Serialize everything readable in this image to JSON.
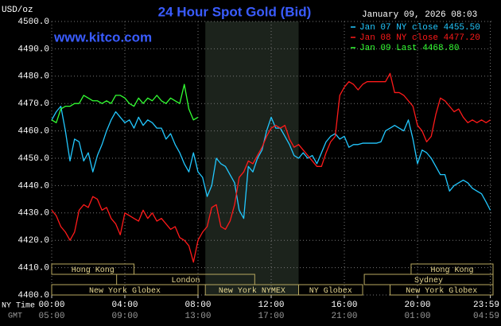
{
  "chart_data": {
    "type": "line",
    "title": "24 Hour Spot Gold (Bid)",
    "watermark": "www.kitco.com",
    "ylabel": "USD/oz",
    "timestamp": "January 09, 2026 08:03",
    "xlabel": "NY Time",
    "x2label": "GMT",
    "xlim": [
      0,
      24.13
    ],
    "xticks": [
      {
        "value": 0,
        "label": "00:00"
      },
      {
        "value": 4,
        "label": "04:00"
      },
      {
        "value": 8,
        "label": "08:00"
      },
      {
        "value": 12,
        "label": "12:00"
      },
      {
        "value": 16,
        "label": "16:00"
      },
      {
        "value": 20,
        "label": "20:00"
      },
      {
        "value": 23.98,
        "label": "23:59"
      }
    ],
    "gmt_labels": [
      "05:00",
      "09:00",
      "13:00",
      "17:00",
      "21:00",
      "01:00",
      "04:59"
    ],
    "ylim": [
      4400,
      4500
    ],
    "yticks": [
      {
        "value": 4400,
        "label": "4400.0"
      },
      {
        "value": 4410,
        "label": "4410.0"
      },
      {
        "value": 4420,
        "label": "4420.0"
      },
      {
        "value": 4430,
        "label": "4430.0"
      },
      {
        "value": 4440,
        "label": "4440.0"
      },
      {
        "value": 4450,
        "label": "4450.0"
      },
      {
        "value": 4460,
        "label": "4460.0"
      },
      {
        "value": 4470,
        "label": "4470.0"
      },
      {
        "value": 4480,
        "label": "4480.0"
      },
      {
        "value": 4490,
        "label": "4490.0"
      },
      {
        "value": 4500,
        "label": "4500.0"
      }
    ],
    "grid": true,
    "sessions": [
      [
        {
          "name": "Hong Kong",
          "start": 0,
          "end": 4.5
        },
        {
          "name": "Hong Kong",
          "start": 19.65,
          "end": 24.13
        }
      ],
      [
        {
          "name": "London",
          "start": 3.55,
          "end": 11.1
        },
        {
          "name": "Sydney",
          "start": 17.09,
          "end": 24.13
        }
      ],
      [
        {
          "name": "New York Globex",
          "start": 0,
          "end": 8.0
        },
        {
          "name": "New York NYMEX",
          "start": 8.4,
          "end": 13.5,
          "shade": true
        },
        {
          "name": "NY Globex",
          "start": 13.5,
          "end": 17.0
        },
        {
          "name": "New York Globex",
          "start": 18.5,
          "end": 24.13
        }
      ]
    ],
    "x": [
      0,
      0.25,
      0.5,
      0.75,
      1,
      1.25,
      1.5,
      1.75,
      2,
      2.25,
      2.5,
      2.75,
      3,
      3.25,
      3.5,
      3.75,
      4,
      4.25,
      4.5,
      4.75,
      5,
      5.25,
      5.5,
      5.75,
      6,
      6.25,
      6.5,
      6.75,
      7,
      7.25,
      7.5,
      7.75,
      8,
      8.25,
      8.5,
      8.75,
      9,
      9.25,
      9.5,
      9.75,
      10,
      10.25,
      10.5,
      10.75,
      11,
      11.25,
      11.5,
      11.75,
      12,
      12.25,
      12.5,
      12.75,
      13,
      13.25,
      13.5,
      13.75,
      14,
      14.25,
      14.5,
      14.75,
      15,
      15.25,
      15.5,
      15.75,
      16,
      16.25,
      16.5,
      16.75,
      17,
      17.25,
      17.5,
      17.75,
      18,
      18.25,
      18.5,
      18.75,
      19,
      19.25,
      19.5,
      19.75,
      20,
      20.25,
      20.5,
      20.75,
      21,
      21.25,
      21.5,
      21.75,
      22,
      22.25,
      22.5,
      22.75,
      23,
      23.25,
      23.5,
      23.75,
      23.98
    ],
    "series": [
      {
        "name": "Jan 07 NY close 4455.50",
        "color": "#22c8ff",
        "values": [
          4464,
          4467,
          4469,
          4460,
          4449,
          4457,
          4456,
          4449,
          4452,
          4445,
          4451,
          4455,
          4460,
          4464,
          4467,
          4465,
          4463,
          4464,
          4461,
          4465,
          4462,
          4464,
          4463,
          4461,
          4461,
          4457,
          4459,
          4455,
          4452,
          4448,
          4445,
          4452,
          4445,
          4443,
          4436,
          4440,
          4450,
          4448,
          4447,
          4444,
          4441,
          4431,
          4428,
          4447,
          4445,
          4450,
          4453,
          4460,
          4465,
          4461,
          4461,
          4458,
          4455,
          4451,
          4450,
          4452,
          4450,
          4451,
          4448,
          4452,
          4456,
          4458,
          4459,
          4457,
          4458,
          4454,
          4455,
          4455,
          4455.5,
          4455.5,
          4455.5,
          4455.5,
          4456,
          4460,
          4461,
          4462,
          4461,
          4460,
          4464,
          4457,
          4448,
          4453,
          4452,
          4450,
          4447,
          4444,
          4444,
          4438,
          4440,
          4441,
          4442,
          4441,
          4439,
          4438,
          4437,
          4434,
          4431
        ]
      },
      {
        "name": "Jan 08 NY close 4477.20",
        "color": "#ff1a1a",
        "values": [
          4431,
          4429,
          4425,
          4423,
          4420,
          4423,
          4431,
          4433,
          4432,
          4436,
          4435,
          4431,
          4432,
          4428,
          4426,
          4422,
          4430,
          4429,
          4428,
          4427,
          4431,
          4428,
          4430,
          4427,
          4428,
          4426,
          4424,
          4425,
          4421,
          4420,
          4418,
          4412,
          4420,
          4423,
          4425,
          4432,
          4433,
          4425,
          4424,
          4427,
          4433,
          4443,
          4445,
          4449,
          4448,
          4451,
          4454,
          4458,
          4461,
          4462,
          4461,
          4462,
          4457,
          4454,
          4455,
          4453,
          4451,
          4449,
          4447,
          4447,
          4452,
          4456,
          4458,
          4473,
          4476,
          4478,
          4477,
          4475,
          4477,
          4478,
          4478,
          4478,
          4478,
          4478,
          4481,
          4474,
          4474,
          4473,
          4471,
          4469,
          4462,
          4460,
          4456,
          4458,
          4466,
          4472,
          4471,
          4469,
          4467,
          4468,
          4465,
          4463,
          4464,
          4463,
          4464,
          4463,
          4464
        ]
      },
      {
        "name": "Jan 09 Last 4468.80",
        "color": "#33ff33",
        "values": [
          4464,
          4463,
          4468,
          4469,
          4469,
          4470,
          4470,
          4473,
          4472,
          4471,
          4471,
          4470,
          4471,
          4470,
          4473,
          4473,
          4472,
          4470,
          4469,
          4472,
          4470,
          4472,
          4471,
          4473,
          4471,
          4470,
          4472,
          4471,
          4470,
          4477,
          4468,
          4464,
          4465,
          null,
          null,
          null,
          null,
          null,
          null,
          null,
          null,
          null,
          null,
          null,
          null,
          null,
          null,
          null,
          null,
          null,
          null,
          null,
          null,
          null,
          null,
          null,
          null,
          null,
          null,
          null,
          null,
          null,
          null,
          null,
          null,
          null,
          null,
          null,
          null,
          null,
          null,
          null,
          null,
          null,
          null,
          null,
          null,
          null,
          null,
          null,
          null,
          null,
          null,
          null,
          null,
          null,
          null,
          null,
          null,
          null,
          null,
          null,
          null,
          null,
          null,
          null,
          null
        ]
      }
    ]
  }
}
